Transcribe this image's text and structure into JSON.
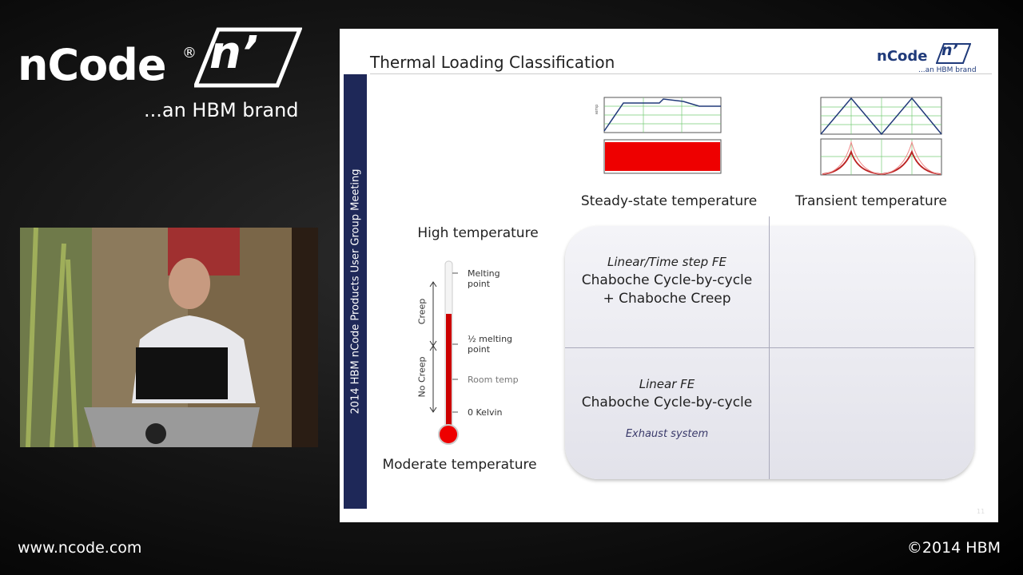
{
  "logo": {
    "name": "nCode",
    "mark": "®",
    "badge": "n’",
    "tagline": "...an HBM brand"
  },
  "footer": {
    "url": "www.ncode.com",
    "copyright": "©2014 HBM"
  },
  "slide": {
    "title": "Thermal Loading Classification",
    "logo": {
      "name": "nCode",
      "badge": "n’",
      "tagline": "...an HBM brand"
    },
    "sidebar": "2014 HBM nCode Products User Group Meeting",
    "columns": [
      "Steady-state temperature",
      "Transient temperature"
    ],
    "rows": [
      "High temperature",
      "Moderate temperature"
    ],
    "thermometer": {
      "melting": "Melting point",
      "half_melting": "½ melting point",
      "room": "Room temp",
      "zero": "0 Kelvin",
      "creep": "Creep",
      "no_creep": "No Creep"
    },
    "cells": {
      "high_steady": {
        "method": "Linear/Time step FE",
        "line1": "Chaboche Cycle-by-cycle",
        "line2": "+ Chaboche Creep"
      },
      "moderate_steady": {
        "method": "Linear FE",
        "line1": "Chaboche Cycle-by-cycle",
        "example": "Exhaust system"
      }
    },
    "page": "11"
  }
}
